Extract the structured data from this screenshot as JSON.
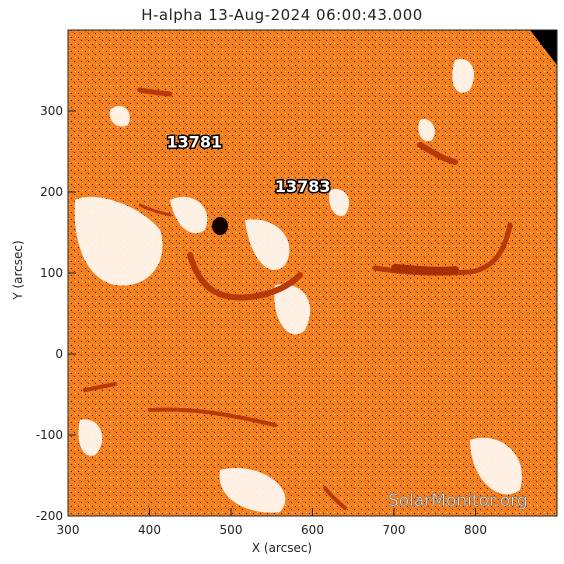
{
  "title": "H-alpha 13-Aug-2024 06:00:43.000",
  "axes": {
    "xlabel": "X (arcsec)",
    "ylabel": "Y (arcsec)",
    "xlim": [
      300,
      900
    ],
    "ylim": [
      -200,
      400
    ],
    "xticks": [
      300,
      400,
      500,
      600,
      700,
      800
    ],
    "yticks": [
      -200,
      -100,
      0,
      100,
      200,
      300
    ]
  },
  "active_regions": [
    {
      "label": "13781",
      "x": 455,
      "y": 255
    },
    {
      "label": "13783",
      "x": 588,
      "y": 200
    }
  ],
  "watermark": "SolarMonitor.org",
  "colors": {
    "background": "#f47a1a",
    "filament": "#b83a0a",
    "plage": "#fff6ee",
    "sunspot": "#140300"
  }
}
